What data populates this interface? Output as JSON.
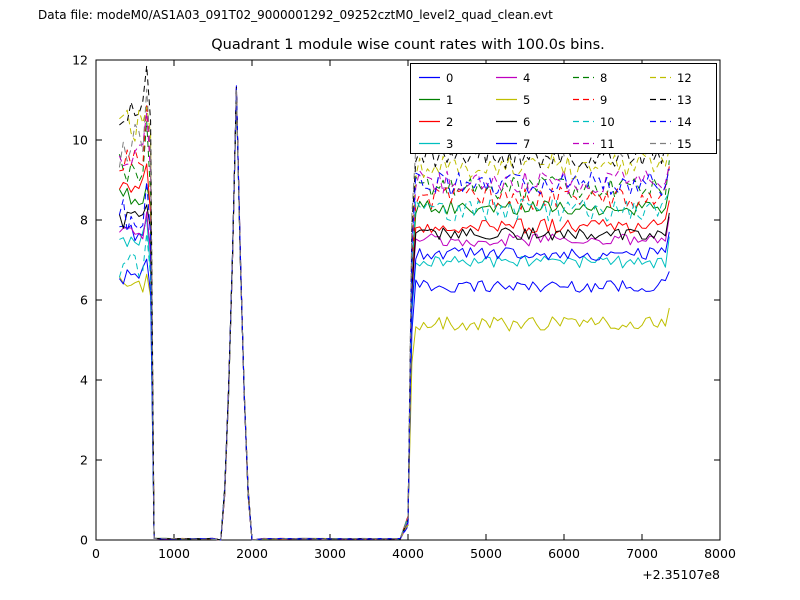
{
  "header": {
    "data_file": "Data file: modeM0/AS1A03_091T02_9000001292_09252cztM0_level2_quad_clean.evt"
  },
  "chart_data": {
    "type": "line",
    "title": "Quadrant 1 module wise count rates with 100.0s bins.",
    "xlabel": "",
    "ylabel": "",
    "xlim": [
      0,
      8000
    ],
    "ylim": [
      0,
      12
    ],
    "x_offset_label": "+2.35107e8",
    "x_ticks": [
      0,
      1000,
      2000,
      3000,
      4000,
      5000,
      6000,
      7000,
      8000
    ],
    "y_ticks": [
      0,
      2,
      4,
      6,
      8,
      10,
      12
    ],
    "grid": false,
    "legend": {
      "position": "upper center-right",
      "columns": 4,
      "rows": 4
    },
    "profile": {
      "description": "All 16 modules: high segment ~x300-700 then drop to 0; narrow peak ~x1600-2000 apex 11.2; zero until ~x3950; sharp rise at x4000-4100 to noisy plateau until x7350",
      "segment1": {
        "x_start": 300,
        "x_end": 700,
        "x_zero": 745
      },
      "peak": {
        "x_rise": 1600,
        "x_apex": 1800,
        "x_fall": 2000,
        "height": 11.2
      },
      "gap2": {
        "x_start": 2050,
        "x_end": 3950
      },
      "plateau": {
        "x_rise": 4000,
        "x_start": 4100,
        "x_end": 7300,
        "x_last": 7350
      },
      "bin_seconds": 100
    },
    "series": [
      {
        "name": "0",
        "color": "#0000ff",
        "dashed": false,
        "start_level": 7.7,
        "plateau_level": 6.35,
        "noise": 0.16
      },
      {
        "name": "1",
        "color": "#008000",
        "dashed": false,
        "start_level": 8.55,
        "plateau_level": 8.3,
        "noise": 0.18
      },
      {
        "name": "2",
        "color": "#ff0000",
        "dashed": false,
        "start_level": 8.9,
        "plateau_level": 7.85,
        "noise": 0.18
      },
      {
        "name": "3",
        "color": "#00bfbf",
        "dashed": false,
        "start_level": 7.55,
        "plateau_level": 6.95,
        "noise": 0.16
      },
      {
        "name": "4",
        "color": "#bf00bf",
        "dashed": false,
        "start_level": 7.75,
        "plateau_level": 7.5,
        "noise": 0.16
      },
      {
        "name": "5",
        "color": "#bfbf00",
        "dashed": false,
        "start_level": 6.35,
        "plateau_level": 5.4,
        "noise": 0.18
      },
      {
        "name": "6",
        "color": "#000000",
        "dashed": false,
        "start_level": 8.0,
        "plateau_level": 7.65,
        "noise": 0.16
      },
      {
        "name": "7",
        "color": "#0000ff",
        "dashed": false,
        "start_level": 6.6,
        "plateau_level": 7.15,
        "noise": 0.16
      },
      {
        "name": "8",
        "color": "#008000",
        "dashed": true,
        "start_level": 9.3,
        "plateau_level": 8.8,
        "noise": 0.3
      },
      {
        "name": "9",
        "color": "#ff0000",
        "dashed": true,
        "start_level": 9.55,
        "plateau_level": 8.55,
        "noise": 0.3
      },
      {
        "name": "10",
        "color": "#00bfbf",
        "dashed": true,
        "start_level": 6.85,
        "plateau_level": 8.25,
        "noise": 0.28
      },
      {
        "name": "11",
        "color": "#bf00bf",
        "dashed": true,
        "start_level": 9.75,
        "plateau_level": 8.95,
        "noise": 0.3
      },
      {
        "name": "12",
        "color": "#bfbf00",
        "dashed": true,
        "start_level": 10.4,
        "plateau_level": 9.35,
        "noise": 0.32
      },
      {
        "name": "13",
        "color": "#000000",
        "dashed": true,
        "start_level": 10.85,
        "plateau_level": 9.6,
        "noise": 0.35
      },
      {
        "name": "14",
        "color": "#0000ff",
        "dashed": true,
        "start_level": 8.1,
        "plateau_level": 8.9,
        "noise": 0.3
      },
      {
        "name": "15",
        "color": "#7f7f7f",
        "dashed": true,
        "start_level": 9.9,
        "plateau_level": 9.95,
        "noise": 0.42
      }
    ]
  }
}
